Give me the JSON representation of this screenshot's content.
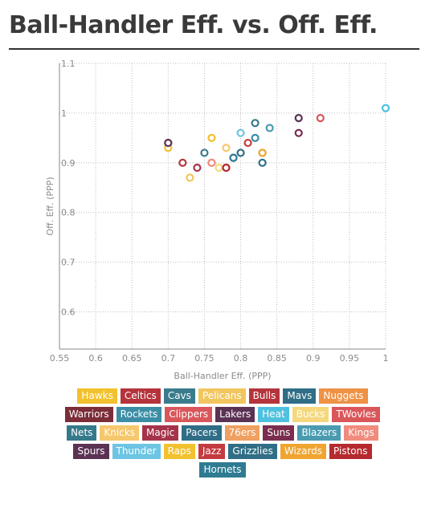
{
  "title": "Ball-Handler Eff. vs. Off. Eff.",
  "chart_data": {
    "type": "scatter",
    "xlabel": "Ball-Handler Eff. (PPP)",
    "ylabel": "Off. Eff. (PPP)",
    "xlim": [
      0.55,
      1.0
    ],
    "ylim": [
      0.525,
      1.1
    ],
    "x_ticks": [
      "0.55",
      "0.6",
      "0.65",
      "0.7",
      "0.75",
      "0.8",
      "0.85",
      "0.9",
      "0.95",
      "1"
    ],
    "x_tick_values": [
      0.55,
      0.6,
      0.65,
      0.7,
      0.75,
      0.8,
      0.85,
      0.9,
      0.95,
      1.0
    ],
    "y_ticks": [
      "1.1",
      "1",
      "0.9",
      "0.8",
      "0.7",
      "0.6"
    ],
    "y_tick_values": [
      1.1,
      1.0,
      0.9,
      0.8,
      0.7,
      0.6
    ],
    "grid": true,
    "legend_placement": "bottom",
    "series": [
      {
        "name": "Hawks",
        "color": "#f2c12e",
        "x": 0.7,
        "y": 0.93
      },
      {
        "name": "Celtics",
        "color": "#b5343c",
        "x": 0.72,
        "y": 0.9
      },
      {
        "name": "Cavs",
        "color": "#3a7c8c",
        "x": 0.75,
        "y": 0.92
      },
      {
        "name": "Pelicans",
        "color": "#f2c65e",
        "x": 0.73,
        "y": 0.87
      },
      {
        "name": "Bulls",
        "color": "#b5343c",
        "x": 0.78,
        "y": 0.89
      },
      {
        "name": "Mavs",
        "color": "#2f6e86",
        "x": 0.79,
        "y": 0.91
      },
      {
        "name": "Nuggets",
        "color": "#ee9246",
        "x": 0.83,
        "y": 0.92
      },
      {
        "name": "Warriors",
        "color": "#7b2d38",
        "x": 0.7,
        "y": 0.94
      },
      {
        "name": "Rockets",
        "color": "#3b8ea5",
        "x": 0.82,
        "y": 0.95
      },
      {
        "name": "Clippers",
        "color": "#d9575b",
        "x": 0.76,
        "y": 0.9
      },
      {
        "name": "Lakers",
        "color": "#5b3254",
        "x": 0.88,
        "y": 0.99
      },
      {
        "name": "Heat",
        "color": "#4fc1e0",
        "x": 1.0,
        "y": 1.01
      },
      {
        "name": "Bucks",
        "color": "#f5d87e",
        "x": 0.77,
        "y": 0.89
      },
      {
        "name": "TWovles",
        "color": "#d9575b",
        "x": 0.91,
        "y": 0.99
      },
      {
        "name": "Nets",
        "color": "#357a8a",
        "x": 0.82,
        "y": 0.98
      },
      {
        "name": "Knicks",
        "color": "#f5c86e",
        "x": 0.78,
        "y": 0.93
      },
      {
        "name": "Magic",
        "color": "#a5344a",
        "x": 0.74,
        "y": 0.89
      },
      {
        "name": "Pacers",
        "color": "#2f6e86",
        "x": 0.83,
        "y": 0.9
      },
      {
        "name": "76ers",
        "color": "#f0a060",
        "x": 0.83,
        "y": 0.92
      },
      {
        "name": "Suns",
        "color": "#7b2d4e",
        "x": 0.88,
        "y": 0.96
      },
      {
        "name": "Blazers",
        "color": "#4a9bb0",
        "x": 0.84,
        "y": 0.97
      },
      {
        "name": "Kings",
        "color": "#f08b7e",
        "x": 0.76,
        "y": 0.9
      },
      {
        "name": "Spurs",
        "color": "#5b3254",
        "x": 0.7,
        "y": 0.94
      },
      {
        "name": "Thunder",
        "color": "#6cc5e3",
        "x": 0.8,
        "y": 0.96
      },
      {
        "name": "Raps",
        "color": "#f2c12e",
        "x": 0.76,
        "y": 0.95
      },
      {
        "name": "Jazz",
        "color": "#c43b3f",
        "x": 0.81,
        "y": 0.94
      },
      {
        "name": "Grizzlies",
        "color": "#2f6e86",
        "x": 0.8,
        "y": 0.92
      },
      {
        "name": "Wizards",
        "color": "#f0a530",
        "x": 0.83,
        "y": 0.92
      },
      {
        "name": "Pistons",
        "color": "#b52a2e",
        "x": 0.78,
        "y": 0.89
      },
      {
        "name": "Hornets",
        "color": "#2f7b92",
        "x": 0.79,
        "y": 0.91
      }
    ]
  }
}
